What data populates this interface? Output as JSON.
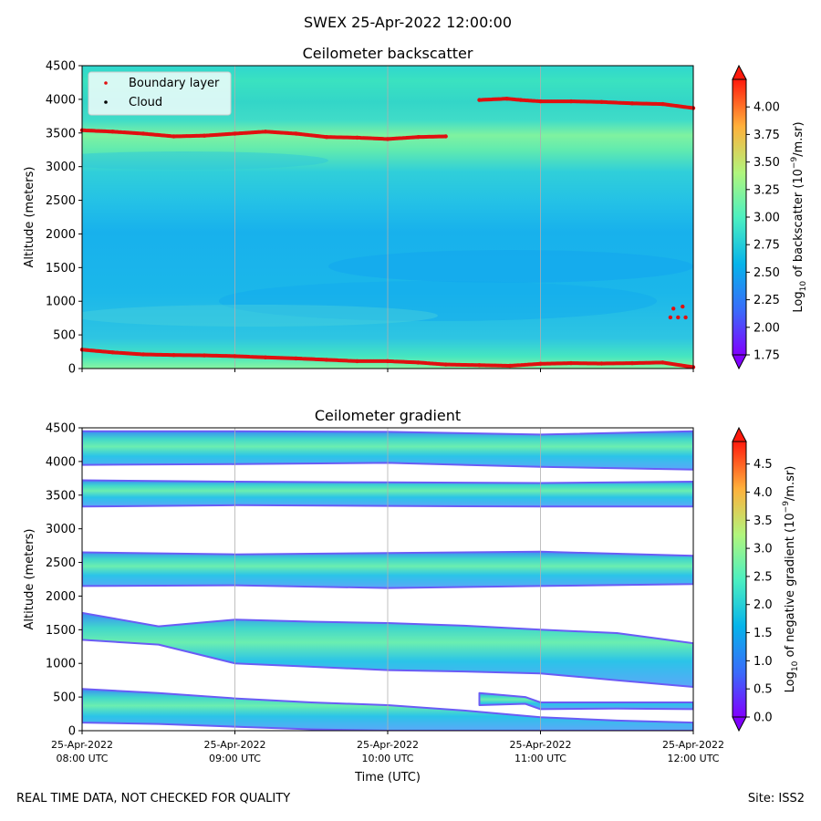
{
  "main_title": "SWEX 25-Apr-2022 12:00:00",
  "footer_note": "REAL TIME DATA, NOT CHECKED FOR QUALITY",
  "footer_site": "Site: ISS2",
  "chart_data": [
    {
      "type": "heatmap",
      "title": "Ceilometer backscatter",
      "xlabel": "",
      "ylabel": "Altitude (meters)",
      "ylim": [
        0,
        4500
      ],
      "yticks": [
        "0",
        "500",
        "1000",
        "1500",
        "2000",
        "2500",
        "3000",
        "3500",
        "4000",
        "4500"
      ],
      "x_range_hours": [
        8,
        12
      ],
      "legend": {
        "placement": "top-left",
        "entries": [
          {
            "name": "Boundary layer",
            "color": "#e01010"
          },
          {
            "name": "Cloud",
            "color": "#000000"
          }
        ]
      },
      "colorbar": {
        "label": "Log10 of backscatter (10^-9/m.sr)",
        "label_text": "Log",
        "label_sub": "10",
        "label_rest": " of backscatter (10",
        "label_sup": "−9",
        "label_end": "/m.sr)",
        "range": [
          1.75,
          4.25
        ],
        "ticks": [
          "1.75",
          "2.00",
          "2.25",
          "2.50",
          "2.75",
          "3.00",
          "3.25",
          "3.50",
          "3.75",
          "4.00"
        ],
        "tick_values": [
          1.75,
          2.0,
          2.25,
          2.5,
          2.75,
          3.0,
          3.25,
          3.5,
          3.75,
          4.0
        ]
      },
      "series": [
        {
          "name": "Boundary layer (upper)",
          "x": [
            8.0,
            8.2,
            8.4,
            8.6,
            8.8,
            9.0,
            9.2,
            9.4,
            9.6,
            9.8,
            10.0,
            10.2,
            10.38
          ],
          "y": [
            3540,
            3520,
            3490,
            3450,
            3460,
            3490,
            3520,
            3490,
            3440,
            3430,
            3410,
            3440,
            3450
          ]
        },
        {
          "name": "Boundary layer (upper, late)",
          "x": [
            10.6,
            10.78,
            10.87,
            11.0,
            11.2,
            11.4,
            11.6,
            11.8,
            12.0
          ],
          "y": [
            3990,
            4010,
            3990,
            3970,
            3970,
            3960,
            3940,
            3930,
            3870
          ]
        },
        {
          "name": "Boundary layer (lower)",
          "x": [
            8.0,
            8.2,
            8.4,
            8.6,
            8.8,
            9.0,
            9.2,
            9.4,
            9.6,
            9.8,
            10.0,
            10.2,
            10.38,
            10.6,
            10.8,
            11.0,
            11.2,
            11.4,
            11.6,
            11.8,
            12.0
          ],
          "y": [
            280,
            240,
            210,
            200,
            195,
            185,
            165,
            150,
            130,
            110,
            110,
            90,
            60,
            50,
            40,
            70,
            80,
            75,
            80,
            90,
            20
          ]
        },
        {
          "name": "Boundary layer (scatter)",
          "x": [
            11.85,
            11.9,
            11.95,
            11.87,
            11.93
          ],
          "y": [
            760,
            760,
            760,
            890,
            920
          ]
        }
      ]
    },
    {
      "type": "heatmap",
      "title": "Ceilometer gradient",
      "xlabel": "Time (UTC)",
      "ylabel": "Altitude (meters)",
      "ylim": [
        0,
        4500
      ],
      "yticks": [
        "0",
        "500",
        "1000",
        "1500",
        "2000",
        "2500",
        "3000",
        "3500",
        "4000",
        "4500"
      ],
      "x_range_hours": [
        8,
        12
      ],
      "xticks": [
        {
          "date": "25-Apr-2022",
          "time": "08:00 UTC",
          "hour": 8
        },
        {
          "date": "25-Apr-2022",
          "time": "09:00 UTC",
          "hour": 9
        },
        {
          "date": "25-Apr-2022",
          "time": "10:00 UTC",
          "hour": 10
        },
        {
          "date": "25-Apr-2022",
          "time": "11:00 UTC",
          "hour": 11
        },
        {
          "date": "25-Apr-2022",
          "time": "12:00 UTC",
          "hour": 12
        }
      ],
      "colorbar": {
        "label": "Log10 of negative gradient (10^-9/m.sr)",
        "label_text": "Log",
        "label_sub": "10",
        "label_rest": " of negative gradient (10",
        "label_sup": "−9",
        "label_end": "/m.sr)",
        "range": [
          0.0,
          4.9
        ],
        "ticks": [
          "0.0",
          "0.5",
          "1.0",
          "1.5",
          "2.0",
          "2.5",
          "3.0",
          "3.5",
          "4.0",
          "4.5"
        ],
        "tick_values": [
          0.0,
          0.5,
          1.0,
          1.5,
          2.0,
          2.5,
          3.0,
          3.5,
          4.0,
          4.5
        ]
      },
      "bands": [
        {
          "name": "band-4100",
          "x": [
            8,
            9,
            10,
            11,
            12
          ],
          "bottom": [
            3950,
            3960,
            3980,
            3920,
            3880
          ],
          "top": [
            4450,
            4450,
            4440,
            4400,
            4450
          ]
        },
        {
          "name": "band-3500",
          "x": [
            8,
            9,
            10,
            11,
            12
          ],
          "bottom": [
            3330,
            3350,
            3340,
            3330,
            3330
          ],
          "top": [
            3720,
            3700,
            3690,
            3680,
            3700
          ]
        },
        {
          "name": "band-2400",
          "x": [
            8,
            9,
            10,
            11,
            12
          ],
          "bottom": [
            2150,
            2160,
            2120,
            2150,
            2180
          ],
          "top": [
            2650,
            2620,
            2640,
            2660,
            2600
          ]
        },
        {
          "name": "band-1300",
          "x": [
            8.0,
            8.5,
            9.0,
            9.5,
            10.0,
            10.5,
            11.0,
            11.5,
            12.0
          ],
          "bottom": [
            1350,
            1280,
            1000,
            950,
            900,
            880,
            850,
            750,
            650
          ],
          "top": [
            1750,
            1550,
            1650,
            1620,
            1600,
            1560,
            1500,
            1450,
            1300
          ]
        },
        {
          "name": "band-400",
          "x": [
            8.0,
            8.5,
            9.0,
            9.5,
            10.0,
            10.5,
            11.0,
            11.5,
            12.0
          ],
          "bottom": [
            120,
            100,
            60,
            20,
            0,
            0,
            0,
            0,
            0
          ],
          "top": [
            620,
            560,
            480,
            420,
            380,
            300,
            200,
            150,
            120
          ]
        },
        {
          "name": "band-700",
          "x": [
            10.6,
            10.9,
            11.0,
            11.5,
            12.0
          ],
          "bottom": [
            380,
            400,
            320,
            330,
            320
          ],
          "top": [
            560,
            500,
            420,
            420,
            420
          ]
        }
      ]
    }
  ]
}
